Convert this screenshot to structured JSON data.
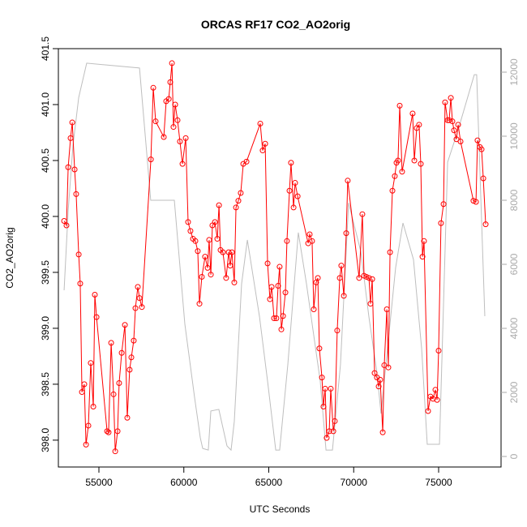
{
  "chart_data": {
    "type": "line",
    "title": "ORCAS RF17 CO2_AO2orig",
    "xlabel": "UTC Seconds",
    "ylabel": "CO2_AO2orig",
    "xlim": [
      52613,
      78676
    ],
    "xticks": [
      55000,
      60000,
      65000,
      70000,
      75000
    ],
    "ylim": [
      397.76,
      401.5
    ],
    "yticks": [
      {
        "value": 398,
        "label": "398.0"
      },
      {
        "value": 398.5,
        "label": "398.5"
      },
      {
        "value": 399,
        "label": "399.0"
      },
      {
        "value": 399.5,
        "label": "399.5"
      },
      {
        "value": 400,
        "label": "400.0"
      },
      {
        "value": 400.5,
        "label": "400.5"
      },
      {
        "value": 401,
        "label": "401.0"
      },
      {
        "value": 401.5,
        "label": "401.5"
      }
    ],
    "y2lim": [
      -329,
      12734
    ],
    "y2ticks": [
      0,
      2000,
      4000,
      6000,
      8000,
      10000,
      12000
    ],
    "series": [
      {
        "color": "#ff0000",
        "markers": true,
        "x": [
          52950,
          53090,
          53190,
          53330,
          53430,
          53570,
          53660,
          53810,
          53900,
          54000,
          54140,
          54240,
          54380,
          54520,
          54670,
          54760,
          54860,
          55480,
          55570,
          55720,
          55860,
          55960,
          56100,
          56190,
          56340,
          56530,
          56670,
          56810,
          56910,
          57050,
          57150,
          57290,
          57390,
          57530,
          58060,
          58200,
          58340,
          58820,
          58960,
          59110,
          59200,
          59300,
          59390,
          59490,
          59630,
          59770,
          59920,
          60110,
          60250,
          60390,
          60540,
          60680,
          60820,
          60920,
          61060,
          61250,
          61400,
          61490,
          61590,
          61680,
          61830,
          61970,
          62070,
          62160,
          62300,
          62490,
          62640,
          62730,
          62830,
          62970,
          63070,
          63210,
          63350,
          63500,
          63690,
          64500,
          64640,
          64790,
          64930,
          65070,
          65170,
          65310,
          65450,
          65550,
          65640,
          65740,
          65840,
          65980,
          66070,
          66220,
          66310,
          66460,
          66550,
          66700,
          67320,
          67410,
          67550,
          67650,
          67790,
          67890,
          67980,
          68130,
          68220,
          68320,
          68410,
          68560,
          68650,
          68800,
          68890,
          69030,
          69180,
          69270,
          69420,
          69560,
          69650,
          70320,
          70510,
          70610,
          70750,
          70900,
          70990,
          71090,
          71230,
          71370,
          71470,
          71560,
          71710,
          71800,
          71950,
          72040,
          72140,
          72280,
          72420,
          72520,
          72610,
          72710,
          72850,
          73470,
          73570,
          73710,
          73850,
          73950,
          74050,
          74140,
          74380,
          74520,
          74670,
          74810,
          74910,
          75000,
          75140,
          75290,
          75380,
          75530,
          75620,
          75720,
          75810,
          75910,
          76050,
          76150,
          76290,
          77050,
          77200,
          77290,
          77430,
          77530,
          77630,
          77770
        ],
        "values": [
          399.96,
          399.92,
          400.44,
          400.7,
          400.84,
          400.42,
          400.2,
          399.66,
          399.4,
          398.43,
          398.5,
          397.96,
          398.13,
          398.69,
          398.3,
          399.3,
          399.1,
          398.08,
          398.07,
          398.87,
          398.41,
          397.9,
          398.08,
          398.51,
          398.78,
          399.03,
          398.2,
          398.63,
          398.74,
          398.89,
          399.18,
          399.37,
          399.27,
          399.19,
          400.51,
          401.15,
          400.85,
          400.71,
          401.03,
          401.05,
          401.2,
          401.37,
          400.8,
          401,
          400.86,
          400.67,
          400.47,
          400.7,
          399.95,
          399.87,
          399.8,
          399.78,
          399.69,
          399.22,
          399.46,
          399.64,
          399.54,
          399.79,
          399.48,
          399.92,
          399.95,
          399.8,
          400.1,
          399.7,
          399.68,
          399.45,
          399.68,
          399.56,
          399.68,
          399.41,
          400.08,
          400.14,
          400.21,
          400.47,
          400.49,
          400.83,
          400.59,
          400.65,
          399.58,
          399.26,
          399.37,
          399.09,
          399.09,
          399.38,
          399.55,
          398.99,
          399.11,
          399.32,
          399.78,
          400.23,
          400.48,
          400.08,
          400.3,
          400.18,
          399.76,
          399.84,
          399.78,
          399.17,
          399.41,
          399.45,
          398.82,
          398.56,
          398.3,
          398.46,
          398.02,
          398.08,
          398.46,
          398.08,
          398.17,
          398.98,
          399.45,
          399.56,
          399.29,
          399.85,
          400.32,
          399.45,
          400.02,
          399.47,
          399.46,
          399.45,
          399.22,
          399.44,
          398.6,
          398.56,
          398.48,
          398.54,
          398.07,
          398.67,
          399.17,
          398.65,
          399.68,
          400.23,
          400.36,
          400.48,
          400.5,
          400.99,
          400.4,
          400.92,
          400.5,
          400.79,
          400.82,
          400.47,
          399.64,
          399.78,
          398.26,
          398.39,
          398.37,
          398.45,
          398.36,
          398.8,
          399.94,
          400.11,
          401.02,
          400.86,
          400.86,
          401.06,
          400.85,
          400.77,
          400.69,
          400.82,
          400.67,
          400.14,
          400.13,
          400.68,
          400.62,
          400.6,
          400.34,
          399.93
        ]
      },
      {
        "color": "#bebebe",
        "axis": "y2",
        "markers": false,
        "x": [
          52950,
          53190,
          53470,
          53810,
          54280,
          57390,
          58050,
          59440,
          60060,
          60630,
          60970,
          61110,
          61440,
          61590,
          62060,
          62540,
          62780,
          62970,
          63400,
          63740,
          64450,
          64930,
          65410,
          65640,
          66120,
          66740,
          67220,
          68030,
          68370,
          68750,
          69220,
          69700,
          70420,
          70890,
          71370,
          71610,
          71990,
          72470,
          72900,
          73520,
          74000,
          74330,
          75050,
          75530,
          76150,
          77100,
          77240,
          77720
        ],
        "values": [
          5190,
          7670,
          9700,
          11210,
          12280,
          12130,
          8000,
          8000,
          4130,
          1850,
          580,
          250,
          200,
          1420,
          1470,
          330,
          200,
          1090,
          5390,
          6760,
          4380,
          2350,
          200,
          200,
          2860,
          6990,
          5390,
          2350,
          200,
          200,
          2860,
          7920,
          6400,
          4380,
          2610,
          1340,
          3370,
          5900,
          7290,
          6150,
          3370,
          380,
          380,
          9190,
          10200,
          11920,
          11920,
          4380
        ]
      }
    ]
  }
}
